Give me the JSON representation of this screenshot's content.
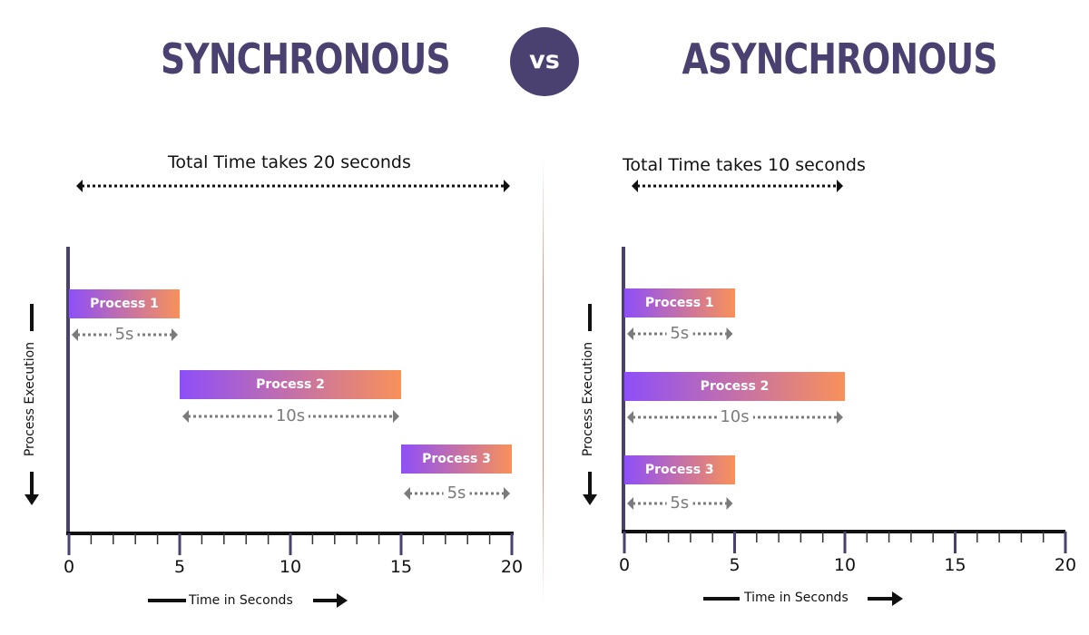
{
  "header": {
    "left_title": "SYNCHRONOUS",
    "vs_label": "vs",
    "right_title": "ASYNCHRONOUS"
  },
  "colors": {
    "heading": "#4a4170",
    "bar_start": "#8e4ff8",
    "bar_end": "#f8915a",
    "divider": "#e48a73",
    "duration_text": "#7b7b7b"
  },
  "chart_data": [
    {
      "type": "gantt",
      "total_label": "Total Time takes 20 seconds",
      "xlabel": "Time in Seconds",
      "ylabel": "Process Execution",
      "xticks": [
        "0",
        "5",
        "10",
        "15",
        "20"
      ],
      "xlim": [
        0,
        20
      ],
      "tasks": [
        {
          "name": "Process 1",
          "start": 0,
          "end": 5,
          "duration_label": "5s"
        },
        {
          "name": "Process 2",
          "start": 5,
          "end": 15,
          "duration_label": "10s"
        },
        {
          "name": "Process 3",
          "start": 15,
          "end": 20,
          "duration_label": "5s"
        }
      ]
    },
    {
      "type": "gantt",
      "total_label": "Total Time takes 10 seconds",
      "xlabel": "Time in Seconds",
      "ylabel": "Process Execution",
      "xticks": [
        "0",
        "5",
        "10",
        "15",
        "20"
      ],
      "xlim": [
        0,
        20
      ],
      "tasks": [
        {
          "name": "Process 1",
          "start": 0,
          "end": 5,
          "duration_label": "5s"
        },
        {
          "name": "Process 2",
          "start": 0,
          "end": 10,
          "duration_label": "10s"
        },
        {
          "name": "Process 3",
          "start": 0,
          "end": 5,
          "duration_label": "5s"
        }
      ]
    }
  ]
}
